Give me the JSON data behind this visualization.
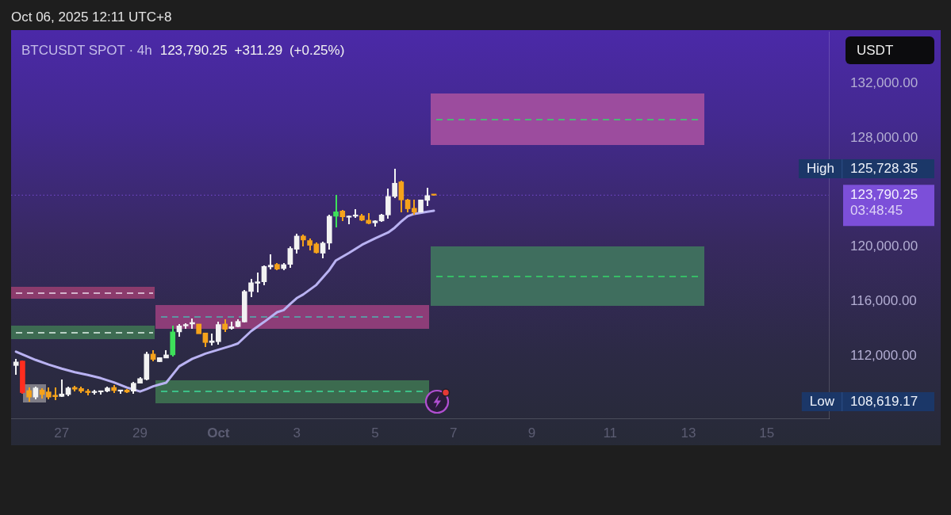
{
  "chart_data": {
    "type": "candlestick",
    "title": "BTCUSDT SPOT · 4h",
    "subtitle": "123,790.25 +311.29 (+0.25%)",
    "ylabel": "USDT",
    "annotations": [
      "Oct 06, 2025 12:11 UTC+8",
      "High 125,728.35",
      "Low 108,619.17"
    ],
    "x": [
      "2025-09-25T20:00",
      "2025-09-26T00:00",
      "2025-09-26T04:00",
      "2025-09-26T08:00",
      "2025-09-26T12:00",
      "2025-09-26T16:00",
      "2025-09-26T20:00",
      "2025-09-27T00:00",
      "2025-09-27T04:00",
      "2025-09-27T08:00",
      "2025-09-27T12:00",
      "2025-09-27T16:00",
      "2025-09-27T20:00",
      "2025-09-28T00:00",
      "2025-09-28T04:00",
      "2025-09-28T08:00",
      "2025-09-28T12:00",
      "2025-09-28T16:00",
      "2025-09-28T20:00",
      "2025-09-29T00:00",
      "2025-09-29T04:00",
      "2025-09-29T08:00",
      "2025-09-29T12:00",
      "2025-09-29T16:00",
      "2025-09-29T20:00",
      "2025-09-30T00:00",
      "2025-09-30T04:00",
      "2025-09-30T08:00",
      "2025-09-30T12:00",
      "2025-09-30T16:00",
      "2025-09-30T20:00",
      "2025-10-01T00:00",
      "2025-10-01T04:00",
      "2025-10-01T08:00",
      "2025-10-01T12:00",
      "2025-10-01T16:00",
      "2025-10-01T20:00",
      "2025-10-02T00:00",
      "2025-10-02T04:00",
      "2025-10-02T08:00",
      "2025-10-02T12:00",
      "2025-10-02T16:00",
      "2025-10-02T20:00",
      "2025-10-03T00:00",
      "2025-10-03T04:00",
      "2025-10-03T08:00",
      "2025-10-03T12:00",
      "2025-10-03T16:00",
      "2025-10-03T20:00",
      "2025-10-04T00:00",
      "2025-10-04T04:00",
      "2025-10-04T08:00",
      "2025-10-04T12:00",
      "2025-10-04T16:00",
      "2025-10-04T20:00",
      "2025-10-05T00:00",
      "2025-10-05T04:00",
      "2025-10-05T08:00",
      "2025-10-05T12:00",
      "2025-10-05T16:00",
      "2025-10-05T20:00",
      "2025-10-06T00:00",
      "2025-10-06T04:00",
      "2025-10-06T08:00",
      "2025-10-06T12:00"
    ],
    "ohlc": [
      [
        111280,
        111770,
        110610,
        111540
      ],
      [
        111610,
        111670,
        109200,
        109290
      ],
      [
        109440,
        109670,
        108619.17,
        108960
      ],
      [
        108960,
        109730,
        108800,
        109630
      ],
      [
        109480,
        109630,
        108860,
        109150
      ],
      [
        109340,
        109670,
        108780,
        108960
      ],
      [
        109100,
        109670,
        108720,
        108990
      ],
      [
        109010,
        110260,
        109000,
        109190
      ],
      [
        109150,
        109730,
        109050,
        109630
      ],
      [
        109670,
        109790,
        109400,
        109540
      ],
      [
        109590,
        109730,
        109290,
        109400
      ],
      [
        109400,
        109540,
        109090,
        109290
      ],
      [
        109290,
        109480,
        109150,
        109380
      ],
      [
        109340,
        109420,
        109150,
        109400
      ],
      [
        109400,
        109700,
        109340,
        109630
      ],
      [
        109670,
        109830,
        109290,
        109440
      ],
      [
        109400,
        109500,
        109200,
        109480
      ],
      [
        109480,
        109540,
        109250,
        109330
      ],
      [
        109400,
        110060,
        109210,
        109980
      ],
      [
        109980,
        110400,
        109940,
        110320
      ],
      [
        110260,
        112310,
        110220,
        112120
      ],
      [
        112120,
        112390,
        111580,
        111730
      ],
      [
        111560,
        111900,
        111540,
        111860
      ],
      [
        111830,
        112410,
        111800,
        112060
      ],
      [
        112060,
        114190,
        111960,
        113750
      ],
      [
        113750,
        114330,
        113420,
        114190
      ],
      [
        114190,
        114390,
        114000,
        114290
      ],
      [
        114330,
        114710,
        114000,
        114440
      ],
      [
        114330,
        114330,
        113610,
        113610
      ],
      [
        113670,
        113710,
        112640,
        112970
      ],
      [
        112970,
        113610,
        112780,
        113090
      ],
      [
        113030,
        114520,
        112800,
        114290
      ],
      [
        114330,
        114680,
        113750,
        113940
      ],
      [
        114000,
        114520,
        113900,
        114130
      ],
      [
        114135,
        114680,
        114080,
        114520
      ],
      [
        114480,
        116800,
        114440,
        116720
      ],
      [
        116720,
        117630,
        116330,
        117360
      ],
      [
        117320,
        118130,
        116660,
        117430
      ],
      [
        117430,
        118650,
        117200,
        118560
      ],
      [
        118520,
        119430,
        118320,
        118650
      ],
      [
        118710,
        118830,
        118260,
        118360
      ],
      [
        118400,
        118830,
        118260,
        118690
      ],
      [
        118710,
        120010,
        118460,
        119880
      ],
      [
        119820,
        120980,
        119530,
        120790
      ],
      [
        120790,
        120880,
        120010,
        120500
      ],
      [
        120460,
        120590,
        119760,
        120110
      ],
      [
        120210,
        120300,
        119530,
        119570
      ],
      [
        119530,
        120400,
        119140,
        120270
      ],
      [
        120270,
        122340,
        119820,
        122245
      ],
      [
        122245,
        123840,
        121430,
        122570
      ],
      [
        122630,
        122730,
        121900,
        122200
      ],
      [
        122170,
        122280,
        121660,
        122245
      ],
      [
        122245,
        122770,
        122150,
        122340
      ],
      [
        122280,
        122430,
        121870,
        121955
      ],
      [
        121955,
        122480,
        121660,
        121720
      ],
      [
        121760,
        121930,
        121470,
        121900
      ],
      [
        121900,
        122400,
        121840,
        122340
      ],
      [
        122340,
        124280,
        122090,
        123700
      ],
      [
        123700,
        125728.35,
        123600,
        124670
      ],
      [
        124770,
        124860,
        122540,
        123445
      ],
      [
        123445,
        123500,
        122510,
        122790
      ],
      [
        122830,
        123445,
        122340,
        122540
      ],
      [
        122540,
        123445,
        122540,
        123445
      ],
      [
        123410,
        124320,
        123020,
        123760
      ],
      [
        123850,
        123880,
        123760,
        123790.25
      ]
    ],
    "colors": [
      "#f2f2f2",
      "#ff2d1f",
      "#f5a21b",
      "#f2f2f2",
      "#f5a21b",
      "#f5a21b",
      "#f5a21b",
      "#f2f2f2",
      "#f2f2f2",
      "#f5a21b",
      "#f5a21b",
      "#f5a21b",
      "#f2f2f2",
      "#f2f2f2",
      "#f2f2f2",
      "#f5a21b",
      "#f2f2f2",
      "#f5a21b",
      "#f2f2f2",
      "#f2f2f2",
      "#f2f2f2",
      "#f5a21b",
      "#f2f2f2",
      "#f2f2f2",
      "#3ee05a",
      "#f2f2f2",
      "#f2f2f2",
      "#f2f2f2",
      "#f5a21b",
      "#f5a21b",
      "#f2f2f2",
      "#f2f2f2",
      "#f5a21b",
      "#f2f2f2",
      "#f2f2f2",
      "#f2f2f2",
      "#f2f2f2",
      "#f2f2f2",
      "#f2f2f2",
      "#f2f2f2",
      "#f5a21b",
      "#f2f2f2",
      "#f2f2f2",
      "#f2f2f2",
      "#f5a21b",
      "#f5a21b",
      "#f5a21b",
      "#f2f2f2",
      "#f2f2f2",
      "#3ee05a",
      "#f5a21b",
      "#f2f2f2",
      "#f2f2f2",
      "#f5a21b",
      "#f5a21b",
      "#f2f2f2",
      "#f2f2f2",
      "#f2f2f2",
      "#f2f2f2",
      "#f5a21b",
      "#f5a21b",
      "#f5a21b",
      "#f2f2f2",
      "#f2f2f2",
      "#f5a21b"
    ],
    "series": [
      {
        "type": "line",
        "color": "#b9b2f2",
        "x": [
          "2025-09-25T20:00",
          "2025-09-26T00:00",
          "2025-09-26T08:00",
          "2025-09-26T16:00",
          "2025-09-27T00:00",
          "2025-09-27T08:00",
          "2025-09-27T16:00",
          "2025-09-28T00:00",
          "2025-09-28T08:00",
          "2025-09-28T16:00",
          "2025-09-29T00:00",
          "2025-09-29T04:00",
          "2025-09-29T08:00",
          "2025-09-29T12:00",
          "2025-09-29T16:00",
          "2025-09-30T00:00",
          "2025-09-30T08:00",
          "2025-09-30T16:00",
          "2025-10-01T00:00",
          "2025-10-01T08:00",
          "2025-10-01T12:00",
          "2025-10-01T20:00",
          "2025-10-02T04:00",
          "2025-10-02T12:00",
          "2025-10-02T16:00",
          "2025-10-02T20:00",
          "2025-10-03T00:00",
          "2025-10-03T04:00",
          "2025-10-03T12:00",
          "2025-10-03T20:00",
          "2025-10-04T00:00",
          "2025-10-04T08:00",
          "2025-10-04T16:00",
          "2025-10-05T00:00",
          "2025-10-05T08:00",
          "2025-10-05T12:00",
          "2025-10-05T16:00",
          "2025-10-05T20:00",
          "2025-10-06T00:00",
          "2025-10-06T08:00",
          "2025-10-06T12:00"
        ],
        "values": [
          112300,
          112090,
          111690,
          111350,
          111050,
          110790,
          110590,
          110350,
          110040,
          109660,
          109370,
          109550,
          109750,
          109890,
          110020,
          111220,
          111770,
          112150,
          112440,
          112730,
          112900,
          113800,
          114480,
          115200,
          115350,
          115800,
          116230,
          116500,
          117200,
          118300,
          119000,
          119550,
          120150,
          120620,
          121050,
          121400,
          121850,
          122250,
          122420,
          122570,
          122650
        ]
      }
    ],
    "xlim": [
      "2025-09-25T17:00",
      "2025-10-16T14:00"
    ],
    "xticks": [
      {
        "value": "2025-09-27",
        "label": "27"
      },
      {
        "value": "2025-09-29",
        "label": "29"
      },
      {
        "value": "2025-10-01",
        "label": "Oct"
      },
      {
        "value": "2025-10-03",
        "label": "3"
      },
      {
        "value": "2025-10-05",
        "label": "5"
      },
      {
        "value": "2025-10-07",
        "label": "7"
      },
      {
        "value": "2025-10-09",
        "label": "9"
      },
      {
        "value": "2025-10-11",
        "label": "11"
      },
      {
        "value": "2025-10-13",
        "label": "13"
      },
      {
        "value": "2025-10-15",
        "label": "15"
      }
    ],
    "ylim": [
      107400,
      135800
    ],
    "yticks": [
      {
        "value": 112000,
        "label": "112,000.00"
      },
      {
        "value": 116000,
        "label": "116,000.00"
      },
      {
        "value": 120000,
        "label": "120,000.00"
      },
      {
        "value": 128000,
        "label": "128,000.00"
      },
      {
        "value": 132000,
        "label": "132,000.00"
      }
    ],
    "ref_lines": [
      {
        "axis": "y",
        "value": 123790.25,
        "label": "123,790.25\n03:48:45",
        "color": "#7c4fd9",
        "line_style": "dotted"
      }
    ]
  }
}
